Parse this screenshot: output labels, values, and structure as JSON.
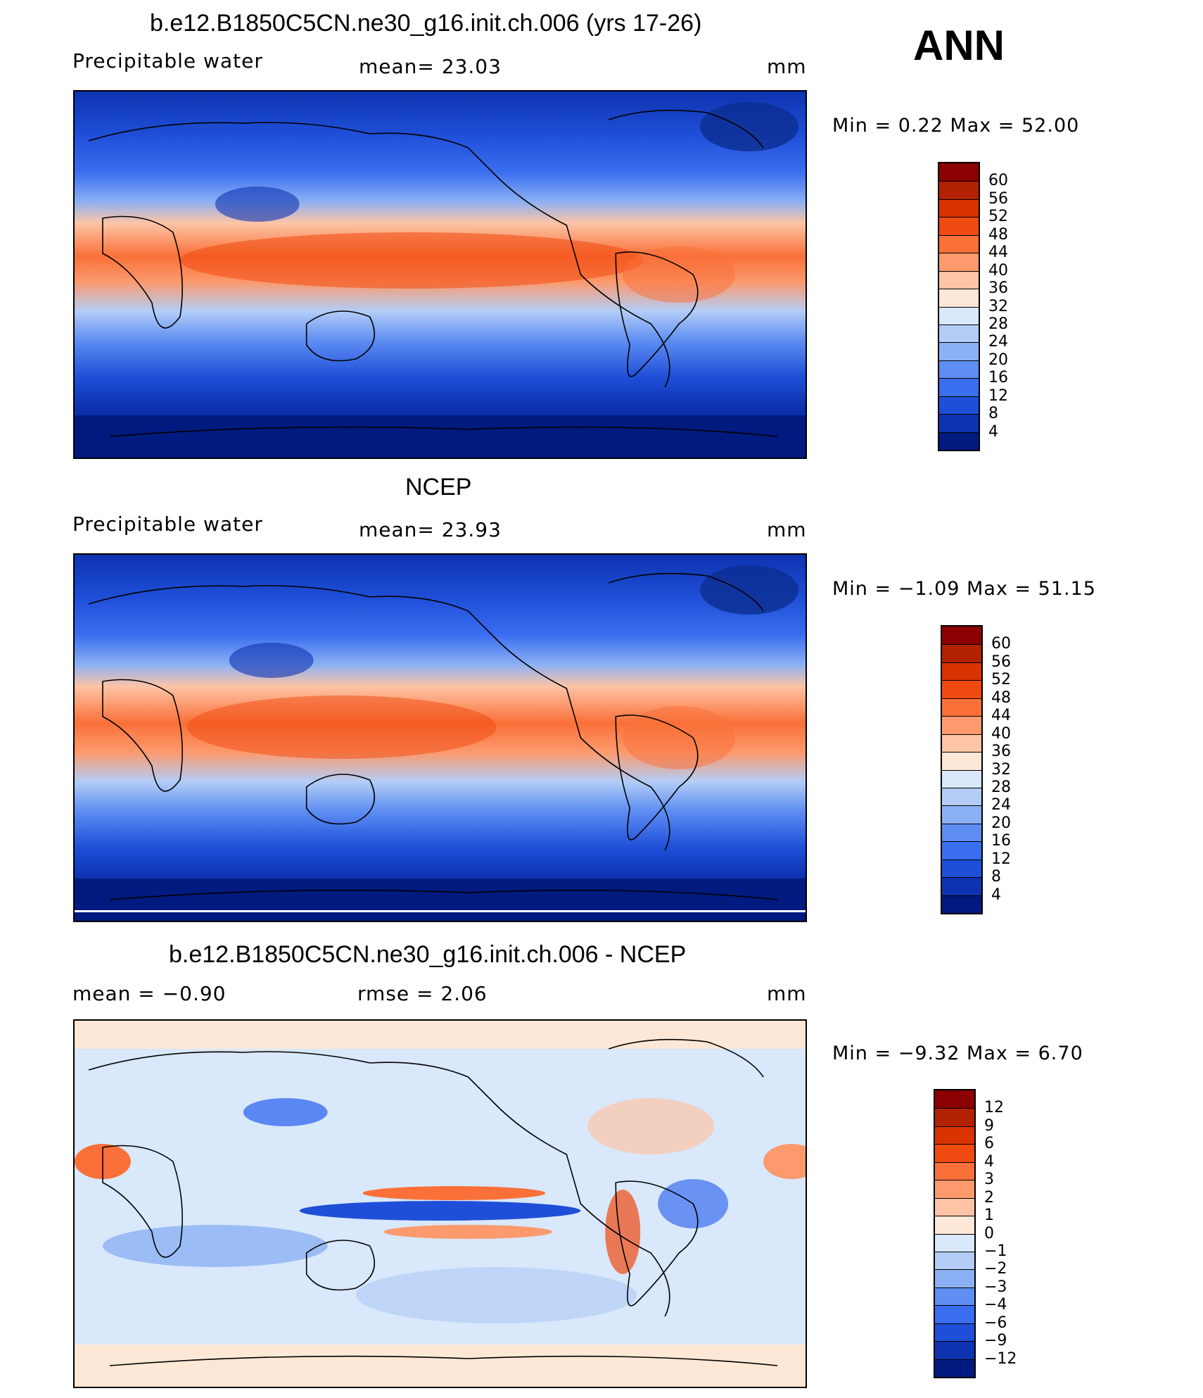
{
  "season": "ANN",
  "panels": [
    {
      "id": "model",
      "title": "b.e12.B1850C5CN.ne30_g16.init.ch.006 (yrs 17-26)",
      "left_label": "Precipitable  water",
      "center_label": "mean=   23.03",
      "units": "mm",
      "minmax": "Min  =     0.22  Max  =    52.00",
      "colorbar": {
        "labels": [
          "60",
          "56",
          "52",
          "48",
          "44",
          "40",
          "36",
          "32",
          "28",
          "24",
          "20",
          "16",
          "12",
          "8",
          "4"
        ],
        "colors": [
          "#8b0000",
          "#b22200",
          "#d93300",
          "#f04a10",
          "#fa7038",
          "#fc9a6e",
          "#fdc4a6",
          "#fde7d6",
          "#d9e8fb",
          "#b3cdf7",
          "#8cb0f4",
          "#5e8ef2",
          "#3a6ef0",
          "#1f4fd8",
          "#0d33b0",
          "#001a80"
        ]
      }
    },
    {
      "id": "obs",
      "title": "NCEP",
      "left_label": "Precipitable  water",
      "center_label": "mean=   23.93",
      "units": "mm",
      "minmax": "Min  =   −1.09  Max  =    51.15",
      "colorbar": {
        "labels": [
          "60",
          "56",
          "52",
          "48",
          "44",
          "40",
          "36",
          "32",
          "28",
          "24",
          "20",
          "16",
          "12",
          "8",
          "4"
        ],
        "colors": [
          "#8b0000",
          "#b22200",
          "#d93300",
          "#f04a10",
          "#fa7038",
          "#fc9a6e",
          "#fdc4a6",
          "#fde7d6",
          "#d9e8fb",
          "#b3cdf7",
          "#8cb0f4",
          "#5e8ef2",
          "#3a6ef0",
          "#1f4fd8",
          "#0d33b0",
          "#001a80"
        ]
      }
    },
    {
      "id": "diff",
      "title": "b.e12.B1850C5CN.ne30_g16.init.ch.006 - NCEP",
      "left_label": "mean  =    −0.90",
      "center_label": "rmse  =     2.06",
      "units": "mm",
      "minmax": "Min  =   −9.32  Max  =     6.70",
      "colorbar": {
        "labels": [
          "12",
          "9",
          "6",
          "4",
          "3",
          "2",
          "1",
          "0",
          "−1",
          "−2",
          "−3",
          "−4",
          "−6",
          "−9",
          "−12"
        ],
        "colors": [
          "#8b0000",
          "#b22200",
          "#d93300",
          "#f04a10",
          "#fa7038",
          "#fc9a6e",
          "#fdc4a6",
          "#fde7d6",
          "#d9e8fb",
          "#b3cdf7",
          "#8cb0f4",
          "#5e8ef2",
          "#3a6ef0",
          "#1f4fd8",
          "#0d33b0",
          "#001a80"
        ]
      }
    }
  ]
}
